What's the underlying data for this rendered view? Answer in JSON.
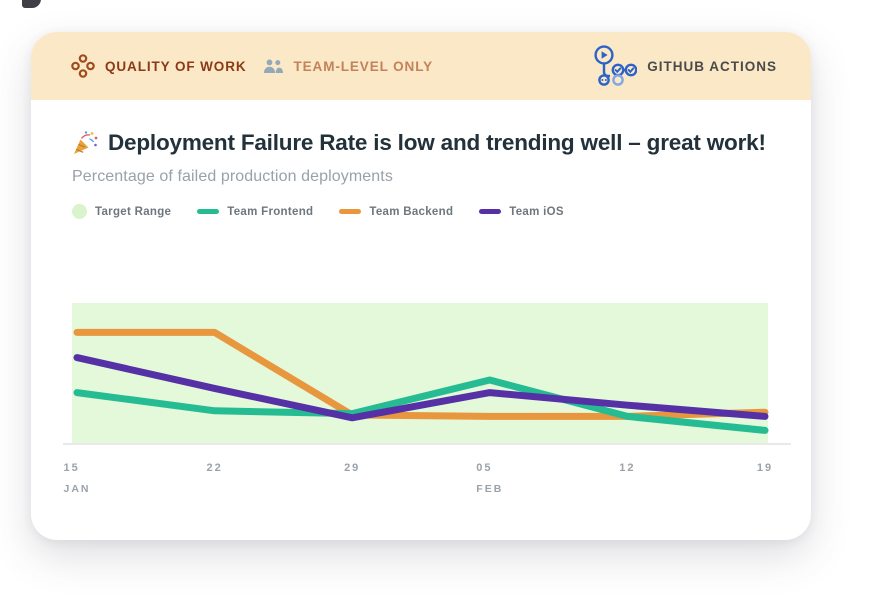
{
  "header": {
    "category_label": "QUALITY OF WORK",
    "scope_label": "TEAM-LEVEL ONLY",
    "source_label": "GITHUB ACTIONS",
    "colors": {
      "bar_background": "#FAE8C6",
      "category_text": "#8A3A16",
      "scope_text": "#C2825A",
      "source_text": "#4A4A4A",
      "logo_blue": "#2D63C8",
      "logo_blue_light": "#7FA8E4"
    }
  },
  "insight": {
    "celebration_icon": "party-popper",
    "title": "Deployment Failure Rate is low and trending well – great work!",
    "subtitle": "Percentage of failed production deployments"
  },
  "legend": {
    "items": [
      {
        "label": "Target Range",
        "swatch": "circle",
        "color": "#D9F3CD"
      },
      {
        "label": "Team Frontend",
        "swatch": "line",
        "color": "#25BC93"
      },
      {
        "label": "Team Backend",
        "swatch": "line",
        "color": "#E9973E"
      },
      {
        "label": "Team iOS",
        "swatch": "line",
        "color": "#5531A5"
      }
    ]
  },
  "chart_data": {
    "type": "line",
    "title": "Deployment Failure Rate is low and trending well – great work!",
    "subtitle": "Percentage of failed production deployments",
    "x": [
      "15 Jan",
      "22 Jan",
      "29 Jan",
      "05 Feb",
      "12 Feb",
      "19 Feb"
    ],
    "x_ticks": [
      {
        "day": "15",
        "month": "JAN"
      },
      {
        "day": "22",
        "month": ""
      },
      {
        "day": "29",
        "month": ""
      },
      {
        "day": "05",
        "month": "FEB"
      },
      {
        "day": "12",
        "month": ""
      },
      {
        "day": "19",
        "month": ""
      }
    ],
    "series": [
      {
        "name": "Team Backend",
        "color": "#E9973E",
        "values": [
          7.9,
          7.9,
          2.0,
          1.9,
          1.9,
          2.2
        ]
      },
      {
        "name": "Team Frontend",
        "color": "#25BC93",
        "values": [
          3.6,
          2.3,
          2.1,
          4.5,
          1.9,
          0.9
        ]
      },
      {
        "name": "Team iOS",
        "color": "#5531A5",
        "values": [
          6.1,
          3.9,
          1.8,
          3.6,
          2.7,
          1.9
        ]
      }
    ],
    "target_range": {
      "label": "Target Range",
      "band": [
        0,
        10
      ],
      "color": "#E4F8DA"
    },
    "ylim": [
      0,
      10
    ],
    "y_axis_visible": false,
    "grid": false,
    "legend_position": "top"
  }
}
